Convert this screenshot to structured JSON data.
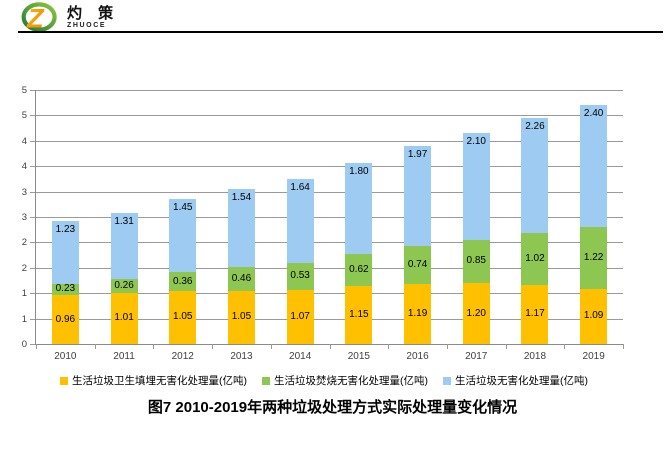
{
  "header": {
    "brand_cn": "灼 策",
    "brand_en": "ZHUOCE",
    "logo_icon": "zhuoce-swoosh-z-icon"
  },
  "chart_data": {
    "type": "bar",
    "stacked": true,
    "title": "图7  2010-2019年两种垃圾处理方式实际处理量变化情况",
    "categories": [
      "2010",
      "2011",
      "2012",
      "2013",
      "2014",
      "2015",
      "2016",
      "2017",
      "2018",
      "2019"
    ],
    "series": [
      {
        "name": "生活垃圾卫生填埋无害化处理量(亿吨)",
        "color": "#FFC000",
        "values": [
          0.96,
          1.01,
          1.05,
          1.05,
          1.07,
          1.15,
          1.19,
          1.2,
          1.17,
          1.09
        ]
      },
      {
        "name": "生活垃圾焚烧无害化处理量(亿吨)",
        "color": "#8DC751",
        "values": [
          0.23,
          0.26,
          0.36,
          0.46,
          0.53,
          0.62,
          0.74,
          0.85,
          1.02,
          1.22
        ]
      },
      {
        "name": "生活垃圾无害化处理量(亿吨)",
        "color": "#9DCBF2",
        "values": [
          1.23,
          1.31,
          1.45,
          1.54,
          1.64,
          1.8,
          1.97,
          2.1,
          2.26,
          2.4
        ]
      }
    ],
    "ylim": [
      0,
      5
    ],
    "ytick_step": 0.5,
    "ytick_labels_bottom_to_top": [
      "0",
      "1",
      "1",
      "2",
      "2",
      "3",
      "3",
      "4",
      "4",
      "5",
      "5"
    ],
    "grid": true,
    "legend_position": "bottom",
    "value_label_decimals": 2,
    "colors": {
      "gridline": "#9a9a9a",
      "axis": "#8a8a8a",
      "tick_text": "#3f3f3f",
      "label_text": "#000000"
    }
  }
}
